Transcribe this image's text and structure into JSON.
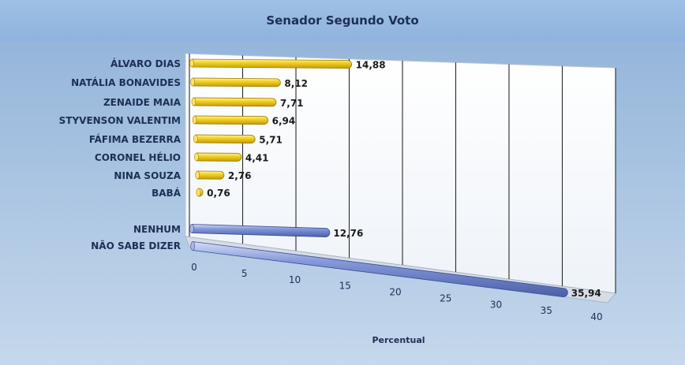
{
  "chart_data": {
    "type": "bar",
    "orientation": "horizontal",
    "title": "Senador Segundo Voto",
    "xlabel": "Percentual",
    "xlim": [
      0,
      40
    ],
    "x_ticks": [
      "0",
      "5",
      "10",
      "15",
      "20",
      "25",
      "30",
      "35",
      "40"
    ],
    "grid": true,
    "series": [
      {
        "color": "#f2cc1a",
        "categories": [
          "ÁLVARO DIAS",
          "NATÁLIA BONAVIDES",
          "ZENAIDE MAIA",
          "STYVENSON VALENTIM",
          "FÁFIMA BEZERRA",
          "CORONEL HÉLIO",
          "NINA SOUZA",
          "BABÁ"
        ],
        "values": [
          14.88,
          8.12,
          7.71,
          6.94,
          5.71,
          4.41,
          2.76,
          0.76
        ],
        "labels": [
          "14,88",
          "8,12",
          "7,71",
          "6,94",
          "5,71",
          "4,41",
          "2,76",
          "0,76"
        ]
      },
      {
        "color": "#6f86cc",
        "categories": [
          "NENHUM",
          "NÃO SABE DIZER"
        ],
        "values": [
          12.76,
          35.94
        ],
        "labels": [
          "12,76",
          "35,94"
        ]
      }
    ]
  }
}
